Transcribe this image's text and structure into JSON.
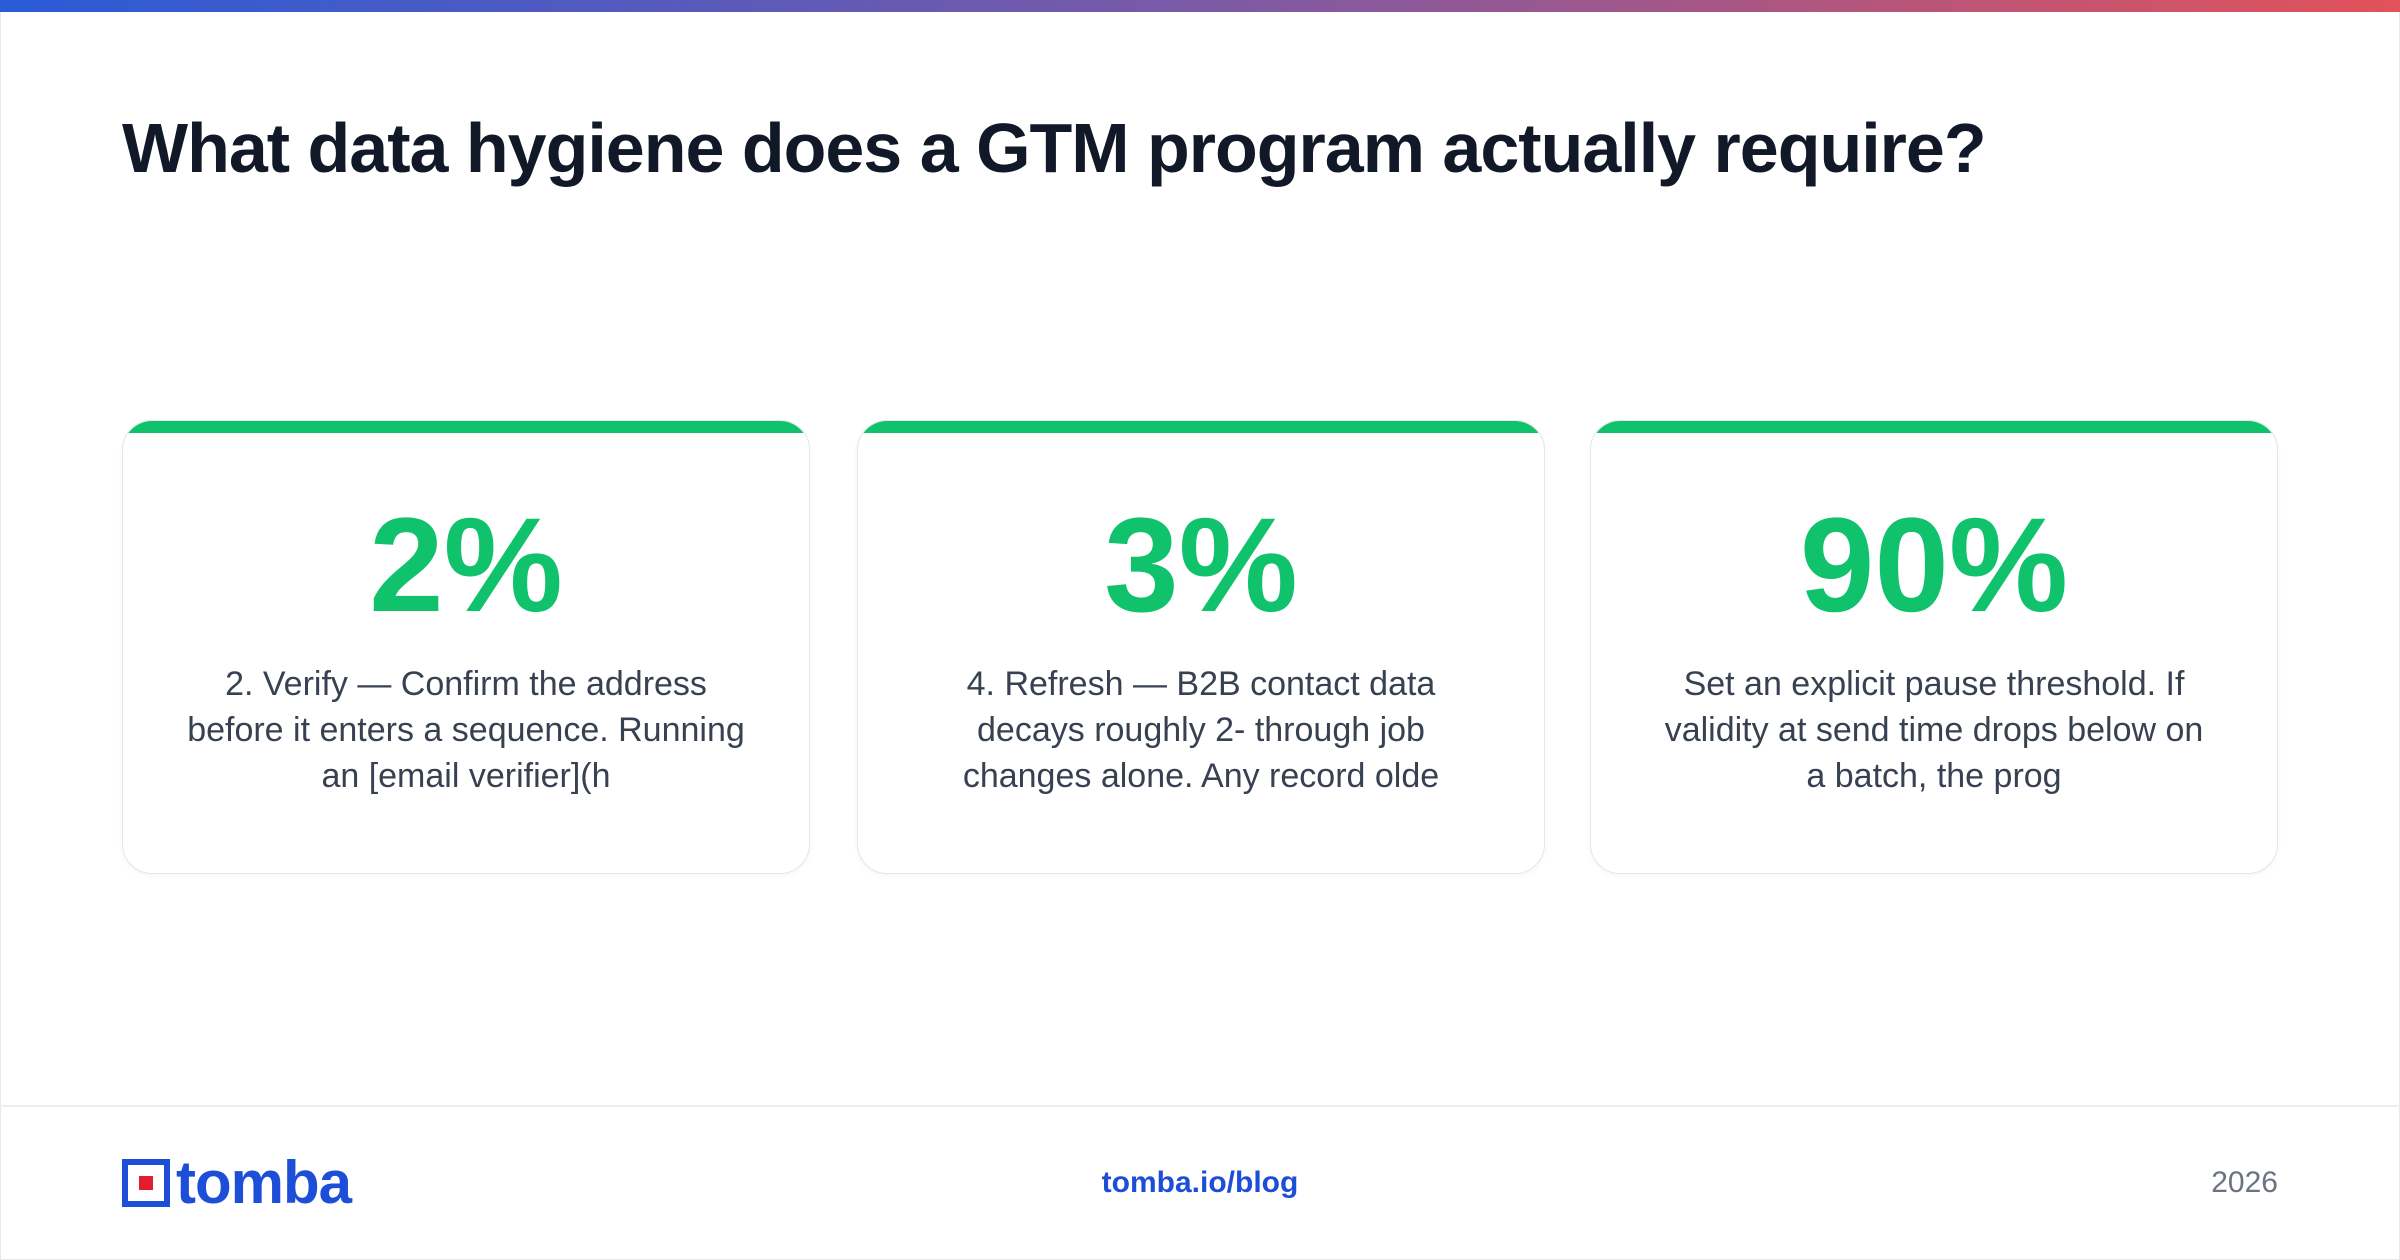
{
  "headline": "What data hygiene does a GTM program actually require?",
  "colors": {
    "accent": "#0fc26b",
    "brand": "#1d4ed8",
    "headline": "#111827",
    "gradient_start": "#2a5bd7",
    "gradient_end": "#e2525a"
  },
  "cards": [
    {
      "stat": "2%",
      "description": "2. Verify — Confirm the address before it enters a sequence. Running an [email verifier](h"
    },
    {
      "stat": "3%",
      "description": "4. Refresh — B2B contact data decays roughly 2- through job changes alone. Any record olde"
    },
    {
      "stat": "90%",
      "description": "Set an explicit pause threshold. If validity at send time drops below on a batch, the prog"
    }
  ],
  "footer": {
    "logo_text": "tomba",
    "logo_icon": "tomba-logo-icon",
    "url": "tomba.io/blog",
    "year": "2026"
  }
}
